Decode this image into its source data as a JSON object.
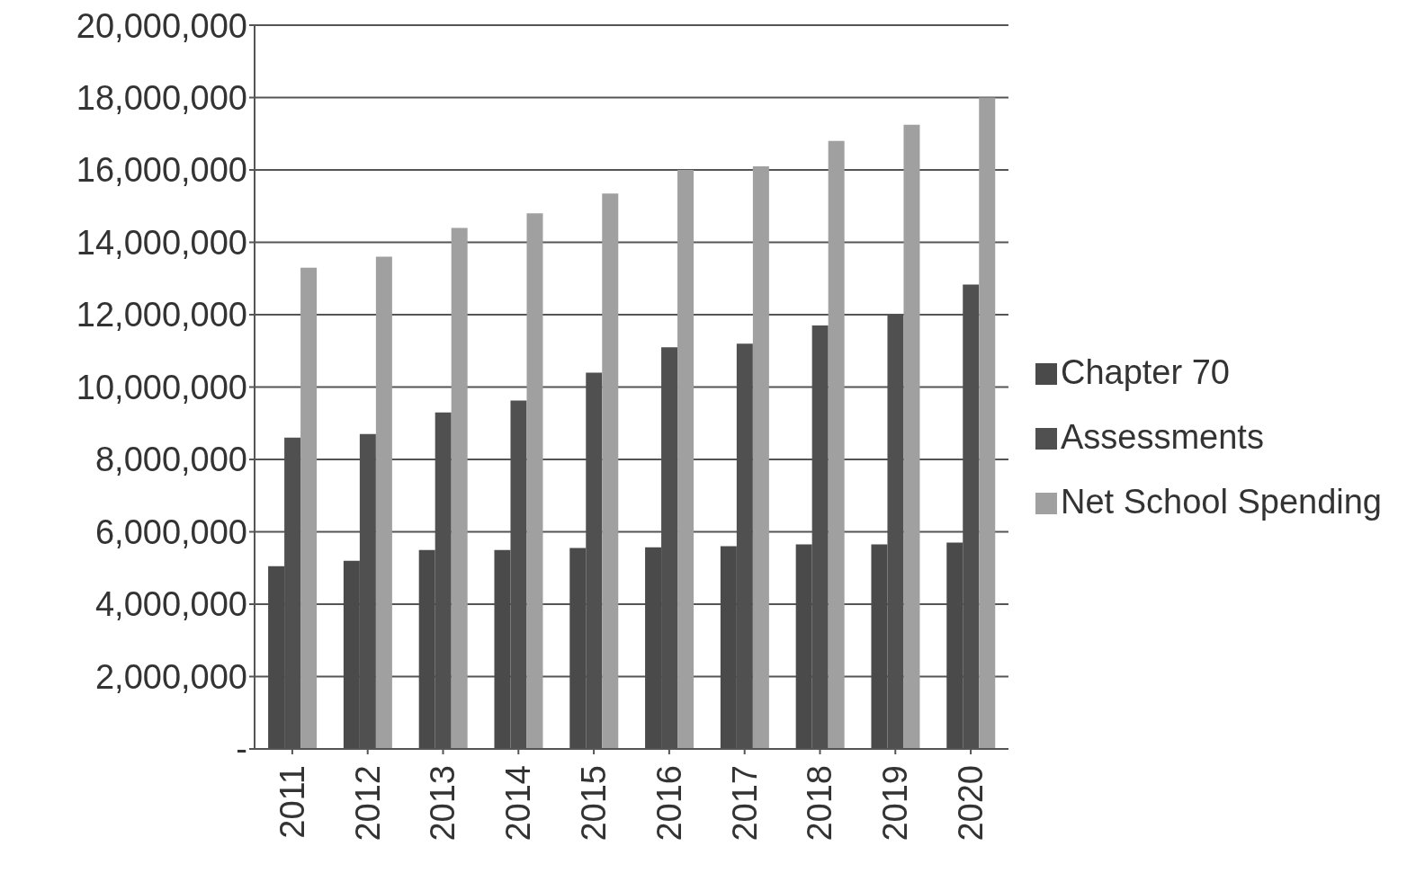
{
  "chart_data": {
    "type": "bar",
    "categories": [
      "2011",
      "2012",
      "2013",
      "2014",
      "2015",
      "2016",
      "2017",
      "2018",
      "2019",
      "2020"
    ],
    "series": [
      {
        "name": "Chapter 70",
        "color": "#4a4a4a",
        "values": [
          5050000,
          5200000,
          5500000,
          5500000,
          5550000,
          5570000,
          5600000,
          5650000,
          5650000,
          5700000
        ]
      },
      {
        "name": "Assessments",
        "color": "#505050",
        "values": [
          8600000,
          8700000,
          9300000,
          9630000,
          10400000,
          11100000,
          11200000,
          11700000,
          12000000,
          12830000
        ]
      },
      {
        "name": "Net School Spending",
        "color": "#a0a0a0",
        "values": [
          13300000,
          13600000,
          14400000,
          14800000,
          15350000,
          16000000,
          16100000,
          16800000,
          17250000,
          18000000
        ]
      }
    ],
    "ylim": [
      0,
      20000000
    ],
    "yticks": [
      {
        "value": 0,
        "label": "-"
      },
      {
        "value": 2000000,
        "label": "2,000,000"
      },
      {
        "value": 4000000,
        "label": "4,000,000"
      },
      {
        "value": 6000000,
        "label": "6,000,000"
      },
      {
        "value": 8000000,
        "label": "8,000,000"
      },
      {
        "value": 10000000,
        "label": "10,000,000"
      },
      {
        "value": 12000000,
        "label": "12,000,000"
      },
      {
        "value": 14000000,
        "label": "14,000,000"
      },
      {
        "value": 16000000,
        "label": "16,000,000"
      },
      {
        "value": 18000000,
        "label": "18,000,000"
      },
      {
        "value": 20000000,
        "label": "20,000,000"
      }
    ],
    "grid": "y",
    "legend": "right"
  }
}
